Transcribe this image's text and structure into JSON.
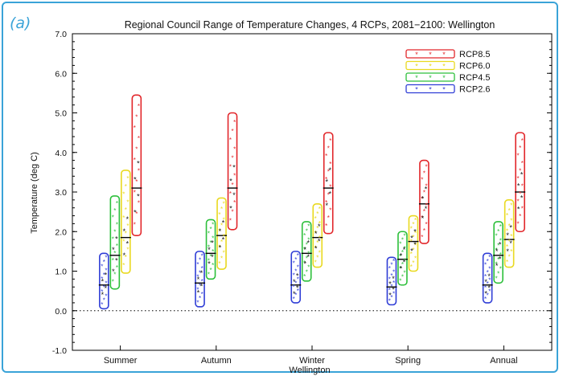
{
  "panel_label": "(a)",
  "colors": {
    "frame": "#3aa3d8",
    "RCP2.6": "#2f3dd6",
    "RCP4.5": "#2cbf3a",
    "RCP6.0": "#e9d91f",
    "RCP8.5": "#e2262a"
  },
  "chart_data": {
    "type": "range-box",
    "title": "Regional Council Range of Temperature Changes, 4 RCPs, 2081−2100: Wellington",
    "xlabel": "Wellington",
    "ylabel": "Temperature (deg C)",
    "ylim": [
      -1.0,
      7.0
    ],
    "yticks": [
      -1.0,
      0.0,
      1.0,
      2.0,
      3.0,
      4.0,
      5.0,
      6.0,
      7.0
    ],
    "ytick_labels": [
      "-1.0",
      "0.0",
      "1.0",
      "2.0",
      "3.0",
      "4.0",
      "5.0",
      "6.0",
      "7.0"
    ],
    "categories": [
      "Summer",
      "Autumn",
      "Winter",
      "Spring",
      "Annual"
    ],
    "zero_line": "dotted",
    "legend_position": "top-right",
    "series": [
      {
        "name": "RCP2.6",
        "min": [
          0.05,
          0.1,
          0.2,
          0.15,
          0.2
        ],
        "max": [
          1.45,
          1.5,
          1.5,
          1.35,
          1.45
        ],
        "median": [
          0.65,
          0.7,
          0.65,
          0.6,
          0.65
        ]
      },
      {
        "name": "RCP4.5",
        "min": [
          0.55,
          0.8,
          0.75,
          0.65,
          0.7
        ],
        "max": [
          2.9,
          2.3,
          2.25,
          2.0,
          2.25
        ],
        "median": [
          1.4,
          1.45,
          1.45,
          1.3,
          1.4
        ]
      },
      {
        "name": "RCP6.0",
        "min": [
          0.95,
          1.05,
          1.1,
          1.0,
          1.1
        ],
        "max": [
          3.55,
          2.85,
          2.7,
          2.4,
          2.8
        ],
        "median": [
          1.85,
          1.9,
          1.85,
          1.75,
          1.8
        ]
      },
      {
        "name": "RCP8.5",
        "min": [
          1.9,
          2.05,
          1.95,
          1.7,
          2.0
        ],
        "max": [
          5.45,
          5.0,
          4.5,
          3.8,
          4.5
        ],
        "median": [
          3.1,
          3.1,
          3.1,
          2.7,
          3.0
        ]
      }
    ]
  }
}
